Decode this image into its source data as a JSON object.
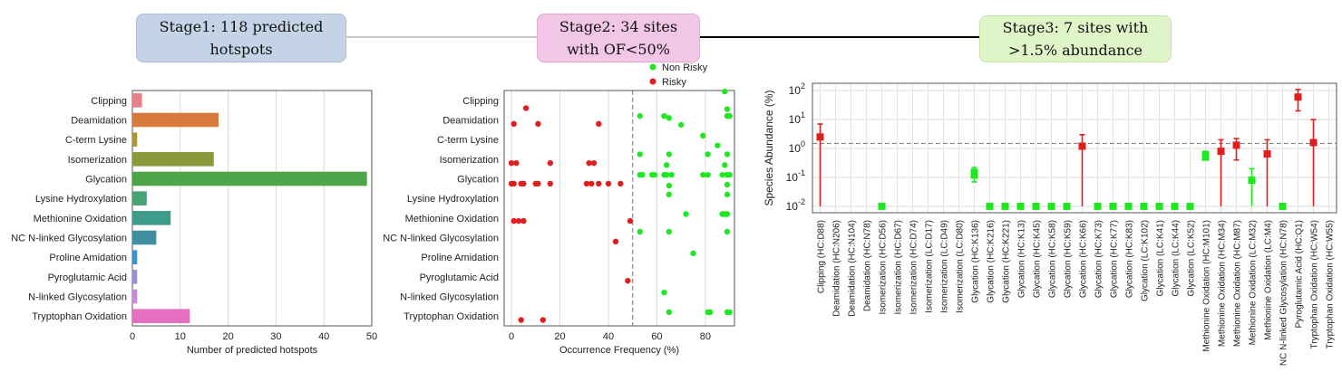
{
  "stages": [
    {
      "label": "Stage1: 118 predicted\nhotspots"
    },
    {
      "label": "Stage2: 34 sites\nwith OF<50%"
    },
    {
      "label": "Stage3: 7 sites with\n>1.5% abundance"
    }
  ],
  "colors": {
    "risky": "#e11d1d",
    "non_risky": "#1ee81e",
    "threshold": "#777777"
  },
  "chart_data": [
    {
      "type": "bar",
      "orientation": "horizontal",
      "categories": [
        "Clipping",
        "Deamidation",
        "C-term Lysine",
        "Isomerization",
        "Glycation",
        "Lysine Hydroxylation",
        "Methionine Oxidation",
        "NC N-linked Glycosylation",
        "Proline Amidation",
        "Pyroglutamic Acid",
        "N-linked Glycosylation",
        "Tryptophan Oxidation"
      ],
      "values": [
        2,
        18,
        1,
        17,
        49,
        3,
        8,
        5,
        1,
        1,
        1,
        12
      ],
      "colors": [
        "#e58187",
        "#d87a3c",
        "#a7963a",
        "#8a9a3a",
        "#4ea547",
        "#45a374",
        "#3d9c8c",
        "#3f8fa0",
        "#3e92c6",
        "#9b8fd3",
        "#c58be0",
        "#e56fbf"
      ],
      "xlabel": "Number of predicted hotspots",
      "ylabel": "",
      "xlim": [
        0,
        50
      ],
      "xticks": [
        0,
        10,
        20,
        30,
        40,
        50
      ],
      "grid": "vertical"
    },
    {
      "type": "scatter",
      "categories": [
        "Clipping",
        "Deamidation",
        "C-term Lysine",
        "Isomerization",
        "Glycation",
        "Lysine Hydroxylation",
        "Methionine Oxidation",
        "NC N-linked Glycosylation",
        "Proline Amidation",
        "Pyroglutamic Acid",
        "N-linked Glycosylation",
        "Tryptophan Oxidation"
      ],
      "series": [
        {
          "name": "Non Risky",
          "color": "#1ee81e",
          "points": [
            {
              "cat": "Clipping",
              "x": 88,
              "dy": -0.45
            },
            {
              "cat": "Clipping",
              "x": 89,
              "dy": 0.45
            },
            {
              "cat": "Deamidation",
              "x": 53,
              "dy": -0.2
            },
            {
              "cat": "Deamidation",
              "x": 63,
              "dy": -0.2
            },
            {
              "cat": "Deamidation",
              "x": 65,
              "dy": -0.1
            },
            {
              "cat": "Deamidation",
              "x": 70,
              "dy": 0.25
            },
            {
              "cat": "Deamidation",
              "x": 89,
              "dy": -0.2
            },
            {
              "cat": "Deamidation",
              "x": 90,
              "dy": -0.2
            },
            {
              "cat": "C-term Lysine",
              "x": 79,
              "dy": -0.2
            },
            {
              "cat": "C-term Lysine",
              "x": 85,
              "dy": 0.3
            },
            {
              "cat": "Isomerization",
              "x": 53,
              "dy": -0.25
            },
            {
              "cat": "Isomerization",
              "x": 65,
              "dy": -0.25
            },
            {
              "cat": "Isomerization",
              "x": 81,
              "dy": -0.25
            },
            {
              "cat": "Isomerization",
              "x": 89,
              "dy": -0.25
            },
            {
              "cat": "Isomerization",
              "x": 64,
              "dy": 0.3
            },
            {
              "cat": "Isomerization",
              "x": 88,
              "dy": 0.3
            },
            {
              "cat": "Glycation",
              "x": 53,
              "dy": -0.2
            },
            {
              "cat": "Glycation",
              "x": 54,
              "dy": -0.2
            },
            {
              "cat": "Glycation",
              "x": 58,
              "dy": -0.2
            },
            {
              "cat": "Glycation",
              "x": 59,
              "dy": -0.2
            },
            {
              "cat": "Glycation",
              "x": 63,
              "dy": -0.2
            },
            {
              "cat": "Glycation",
              "x": 64,
              "dy": -0.2
            },
            {
              "cat": "Glycation",
              "x": 66,
              "dy": -0.2
            },
            {
              "cat": "Glycation",
              "x": 79,
              "dy": -0.2
            },
            {
              "cat": "Glycation",
              "x": 81,
              "dy": -0.2
            },
            {
              "cat": "Glycation",
              "x": 87,
              "dy": -0.2
            },
            {
              "cat": "Glycation",
              "x": 89,
              "dy": -0.2
            },
            {
              "cat": "Glycation",
              "x": 90,
              "dy": -0.2
            },
            {
              "cat": "Glycation",
              "x": 65,
              "dy": 0.35
            },
            {
              "cat": "Glycation",
              "x": 89,
              "dy": 0.3
            },
            {
              "cat": "Lysine Hydroxylation",
              "x": 65,
              "dy": -0.2
            },
            {
              "cat": "Lysine Hydroxylation",
              "x": 89,
              "dy": -0.2
            },
            {
              "cat": "Methionine Oxidation",
              "x": 72,
              "dy": -0.2
            },
            {
              "cat": "Methionine Oxidation",
              "x": 87,
              "dy": -0.2
            },
            {
              "cat": "Methionine Oxidation",
              "x": 89,
              "dy": -0.2
            },
            {
              "cat": "Methionine Oxidation",
              "x": 88,
              "dy": -0.2
            },
            {
              "cat": "NC N-linked Glycosylation",
              "x": 53,
              "dy": -0.3
            },
            {
              "cat": "NC N-linked Glycosylation",
              "x": 65,
              "dy": -0.3
            },
            {
              "cat": "NC N-linked Glycosylation",
              "x": 89,
              "dy": -0.3
            },
            {
              "cat": "Proline Amidation",
              "x": 75,
              "dy": -0.2
            },
            {
              "cat": "N-linked Glycosylation",
              "x": 63,
              "dy": -0.2
            },
            {
              "cat": "Tryptophan Oxidation",
              "x": 65,
              "dy": -0.2
            },
            {
              "cat": "Tryptophan Oxidation",
              "x": 81,
              "dy": -0.2
            },
            {
              "cat": "Tryptophan Oxidation",
              "x": 82,
              "dy": -0.2
            },
            {
              "cat": "Tryptophan Oxidation",
              "x": 89,
              "dy": -0.2
            },
            {
              "cat": "Tryptophan Oxidation",
              "x": 90,
              "dy": -0.2
            }
          ]
        },
        {
          "name": "Risky",
          "color": "#e11d1d",
          "points": [
            {
              "cat": "Clipping",
              "x": 6,
              "dy": 0.4
            },
            {
              "cat": "Deamidation",
              "x": 1,
              "dy": 0.2
            },
            {
              "cat": "Deamidation",
              "x": 11,
              "dy": 0.2
            },
            {
              "cat": "Deamidation",
              "x": 36,
              "dy": 0.2
            },
            {
              "cat": "Isomerization",
              "x": 0,
              "dy": 0.2
            },
            {
              "cat": "Isomerization",
              "x": 2,
              "dy": 0.2
            },
            {
              "cat": "Isomerization",
              "x": 16,
              "dy": 0.2
            },
            {
              "cat": "Isomerization",
              "x": 32,
              "dy": 0.2
            },
            {
              "cat": "Isomerization",
              "x": 34,
              "dy": 0.2
            },
            {
              "cat": "Glycation",
              "x": 0,
              "dy": 0.25
            },
            {
              "cat": "Glycation",
              "x": 1,
              "dy": 0.25
            },
            {
              "cat": "Glycation",
              "x": 4,
              "dy": 0.25
            },
            {
              "cat": "Glycation",
              "x": 5,
              "dy": 0.25
            },
            {
              "cat": "Glycation",
              "x": 10,
              "dy": 0.25
            },
            {
              "cat": "Glycation",
              "x": 11,
              "dy": 0.25
            },
            {
              "cat": "Glycation",
              "x": 16,
              "dy": 0.25
            },
            {
              "cat": "Glycation",
              "x": 31,
              "dy": 0.25
            },
            {
              "cat": "Glycation",
              "x": 33,
              "dy": 0.25
            },
            {
              "cat": "Glycation",
              "x": 36,
              "dy": 0.25
            },
            {
              "cat": "Glycation",
              "x": 40,
              "dy": 0.25
            },
            {
              "cat": "Glycation",
              "x": 45,
              "dy": 0.25
            },
            {
              "cat": "Methionine Oxidation",
              "x": 1,
              "dy": 0.15
            },
            {
              "cat": "Methionine Oxidation",
              "x": 3,
              "dy": 0.15
            },
            {
              "cat": "Methionine Oxidation",
              "x": 5,
              "dy": 0.15
            },
            {
              "cat": "Methionine Oxidation",
              "x": 49,
              "dy": 0.15
            },
            {
              "cat": "NC N-linked Glycosylation",
              "x": 43,
              "dy": 0.2
            },
            {
              "cat": "Pyroglutamic Acid",
              "x": 48,
              "dy": 0.2
            },
            {
              "cat": "Tryptophan Oxidation",
              "x": 4,
              "dy": 0.2
            },
            {
              "cat": "Tryptophan Oxidation",
              "x": 13,
              "dy": 0.2
            }
          ]
        }
      ],
      "threshold_x": 50,
      "xlabel": "Occurrence Frequency (%)",
      "ylabel": "",
      "xlim": [
        -3,
        92
      ],
      "xticks": [
        0,
        20,
        40,
        60,
        80
      ],
      "grid": true,
      "legend": "top-right"
    },
    {
      "type": "scatter",
      "scale_y": "log",
      "categories": [
        "Clipping (HC:D88)",
        "Deamidation (HC:N206)",
        "Deamidation (HC:N104)",
        "Deamidation (HC:N78)",
        "Isomerization (HC:D56)",
        "Isomerization (HC:D67)",
        "Isomerization (HC:D74)",
        "Isomerization (LC:D17)",
        "Isomerization (LC:D49)",
        "Isomerization (LC:D80)",
        "Glycation (HC:K136)",
        "Glycation (HC:K216)",
        "Glycation (HC:K221)",
        "Glycation (HC:K13)",
        "Glycation (HC:K45)",
        "Glycation (HC:K58)",
        "Glycation (HC:K59)",
        "Glycation (HC:K66)",
        "Glycation (HC:K73)",
        "Glycation (HC:K77)",
        "Glycation (HC:K83)",
        "Glycation (LC:K102)",
        "Glycation (LC:K41)",
        "Glycation (LC:K44)",
        "Glycation (LC:K52)",
        "Methionine Oxidation (HC:M101)",
        "Methionine Oxidation (HC:M34)",
        "Methionine Oxidation (HC:M87)",
        "Methionine Oxidation (LC:M32)",
        "Methionine Oxidation (LC:M4)",
        "NC N-linked Glycosylation (HC:N78)",
        "Pyroglutamic Acid (HC:Q1)",
        "Tryptophan Oxidation (HC:W54)",
        "Tryptophan Oxidation (HC:W55)"
      ],
      "points": [
        {
          "i": 0,
          "value": 2.5,
          "low": 0.01,
          "high": 7,
          "risky": true
        },
        {
          "i": 4,
          "value": 0.01,
          "risky": false
        },
        {
          "i": 10,
          "value": 0.15,
          "low": 0.07,
          "high": 0.22,
          "risky": false,
          "extra": 0.12
        },
        {
          "i": 11,
          "value": 0.01,
          "risky": false
        },
        {
          "i": 12,
          "value": 0.01,
          "risky": false
        },
        {
          "i": 13,
          "value": 0.01,
          "risky": false
        },
        {
          "i": 14,
          "value": 0.01,
          "risky": false
        },
        {
          "i": 15,
          "value": 0.01,
          "risky": false
        },
        {
          "i": 16,
          "value": 0.01,
          "risky": false
        },
        {
          "i": 17,
          "value": 1.2,
          "low": 0.01,
          "high": 3,
          "risky": true
        },
        {
          "i": 18,
          "value": 0.01,
          "risky": false
        },
        {
          "i": 19,
          "value": 0.01,
          "risky": false
        },
        {
          "i": 20,
          "value": 0.01,
          "risky": false
        },
        {
          "i": 21,
          "value": 0.01,
          "risky": false
        },
        {
          "i": 22,
          "value": 0.01,
          "risky": false
        },
        {
          "i": 23,
          "value": 0.01,
          "risky": false
        },
        {
          "i": 24,
          "value": 0.01,
          "risky": false
        },
        {
          "i": 25,
          "value": 0.6,
          "low": 0.45,
          "high": 0.8,
          "risky": false,
          "extra": 0.5
        },
        {
          "i": 26,
          "value": 0.8,
          "low": 0.01,
          "high": 2,
          "risky": true
        },
        {
          "i": 27,
          "value": 1.3,
          "low": 0.4,
          "high": 2.2,
          "risky": true
        },
        {
          "i": 28,
          "value": 0.08,
          "low": 0.01,
          "high": 0.2,
          "risky": false
        },
        {
          "i": 29,
          "value": 0.65,
          "low": 0.01,
          "high": 2,
          "risky": true
        },
        {
          "i": 30,
          "value": 0.01,
          "risky": false
        },
        {
          "i": 31,
          "value": 60,
          "low": 20,
          "high": 110,
          "risky": true
        },
        {
          "i": 32,
          "value": 1.6,
          "low": 0.01,
          "high": 10,
          "risky": true
        }
      ],
      "threshold_y": 1.5,
      "ylabel": "Species Abundance (%)",
      "xlabel": "",
      "ylim": [
        0.006,
        180
      ],
      "yticks": [
        "10^{-2}",
        "10^{-1}",
        "10^{0}",
        "10^{1}",
        "10^{2}"
      ],
      "grid": true
    }
  ]
}
